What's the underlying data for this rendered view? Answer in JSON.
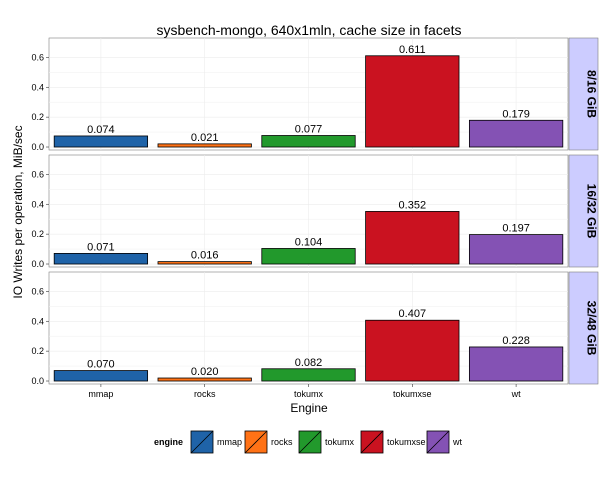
{
  "chart_data": {
    "type": "bar",
    "title": "sysbench-mongo, 640x1mln, cache size in facets",
    "xlabel": "Engine",
    "ylabel": "IO Writes per operation, MiB/sec",
    "categories": [
      "mmap",
      "rocks",
      "tokumx",
      "tokumxse",
      "wt"
    ],
    "ylim": [
      -0.02,
      0.73
    ],
    "yticks": [
      0.0,
      0.2,
      0.4,
      0.6
    ],
    "ytick_labels": [
      "0.0",
      "0.2",
      "0.4",
      "0.6"
    ],
    "grid": true,
    "facets": [
      {
        "label": "8/16 GiB",
        "values": [
          0.074,
          0.021,
          0.077,
          0.611,
          0.179
        ],
        "value_labels": [
          "0.074",
          "0.021",
          "0.077",
          "0.611",
          "0.179"
        ]
      },
      {
        "label": "16/32 GiB",
        "values": [
          0.071,
          0.016,
          0.104,
          0.352,
          0.197
        ],
        "value_labels": [
          "0.071",
          "0.016",
          "0.104",
          "0.352",
          "0.197"
        ]
      },
      {
        "label": "32/48 GiB",
        "values": [
          0.07,
          0.02,
          0.082,
          0.407,
          0.228
        ],
        "value_labels": [
          "0.070",
          "0.020",
          "0.082",
          "0.407",
          "0.228"
        ]
      }
    ],
    "legend": {
      "title": "engine",
      "placement": "bottom",
      "entries": [
        "mmap",
        "rocks",
        "tokumx",
        "tokumxse",
        "wt"
      ]
    },
    "colors": [
      "#1f63a8",
      "#ff7216",
      "#22992c",
      "#ca1220",
      "#8452b4"
    ],
    "strip_color": "#ccccff",
    "panel_background": "#ffffff"
  }
}
